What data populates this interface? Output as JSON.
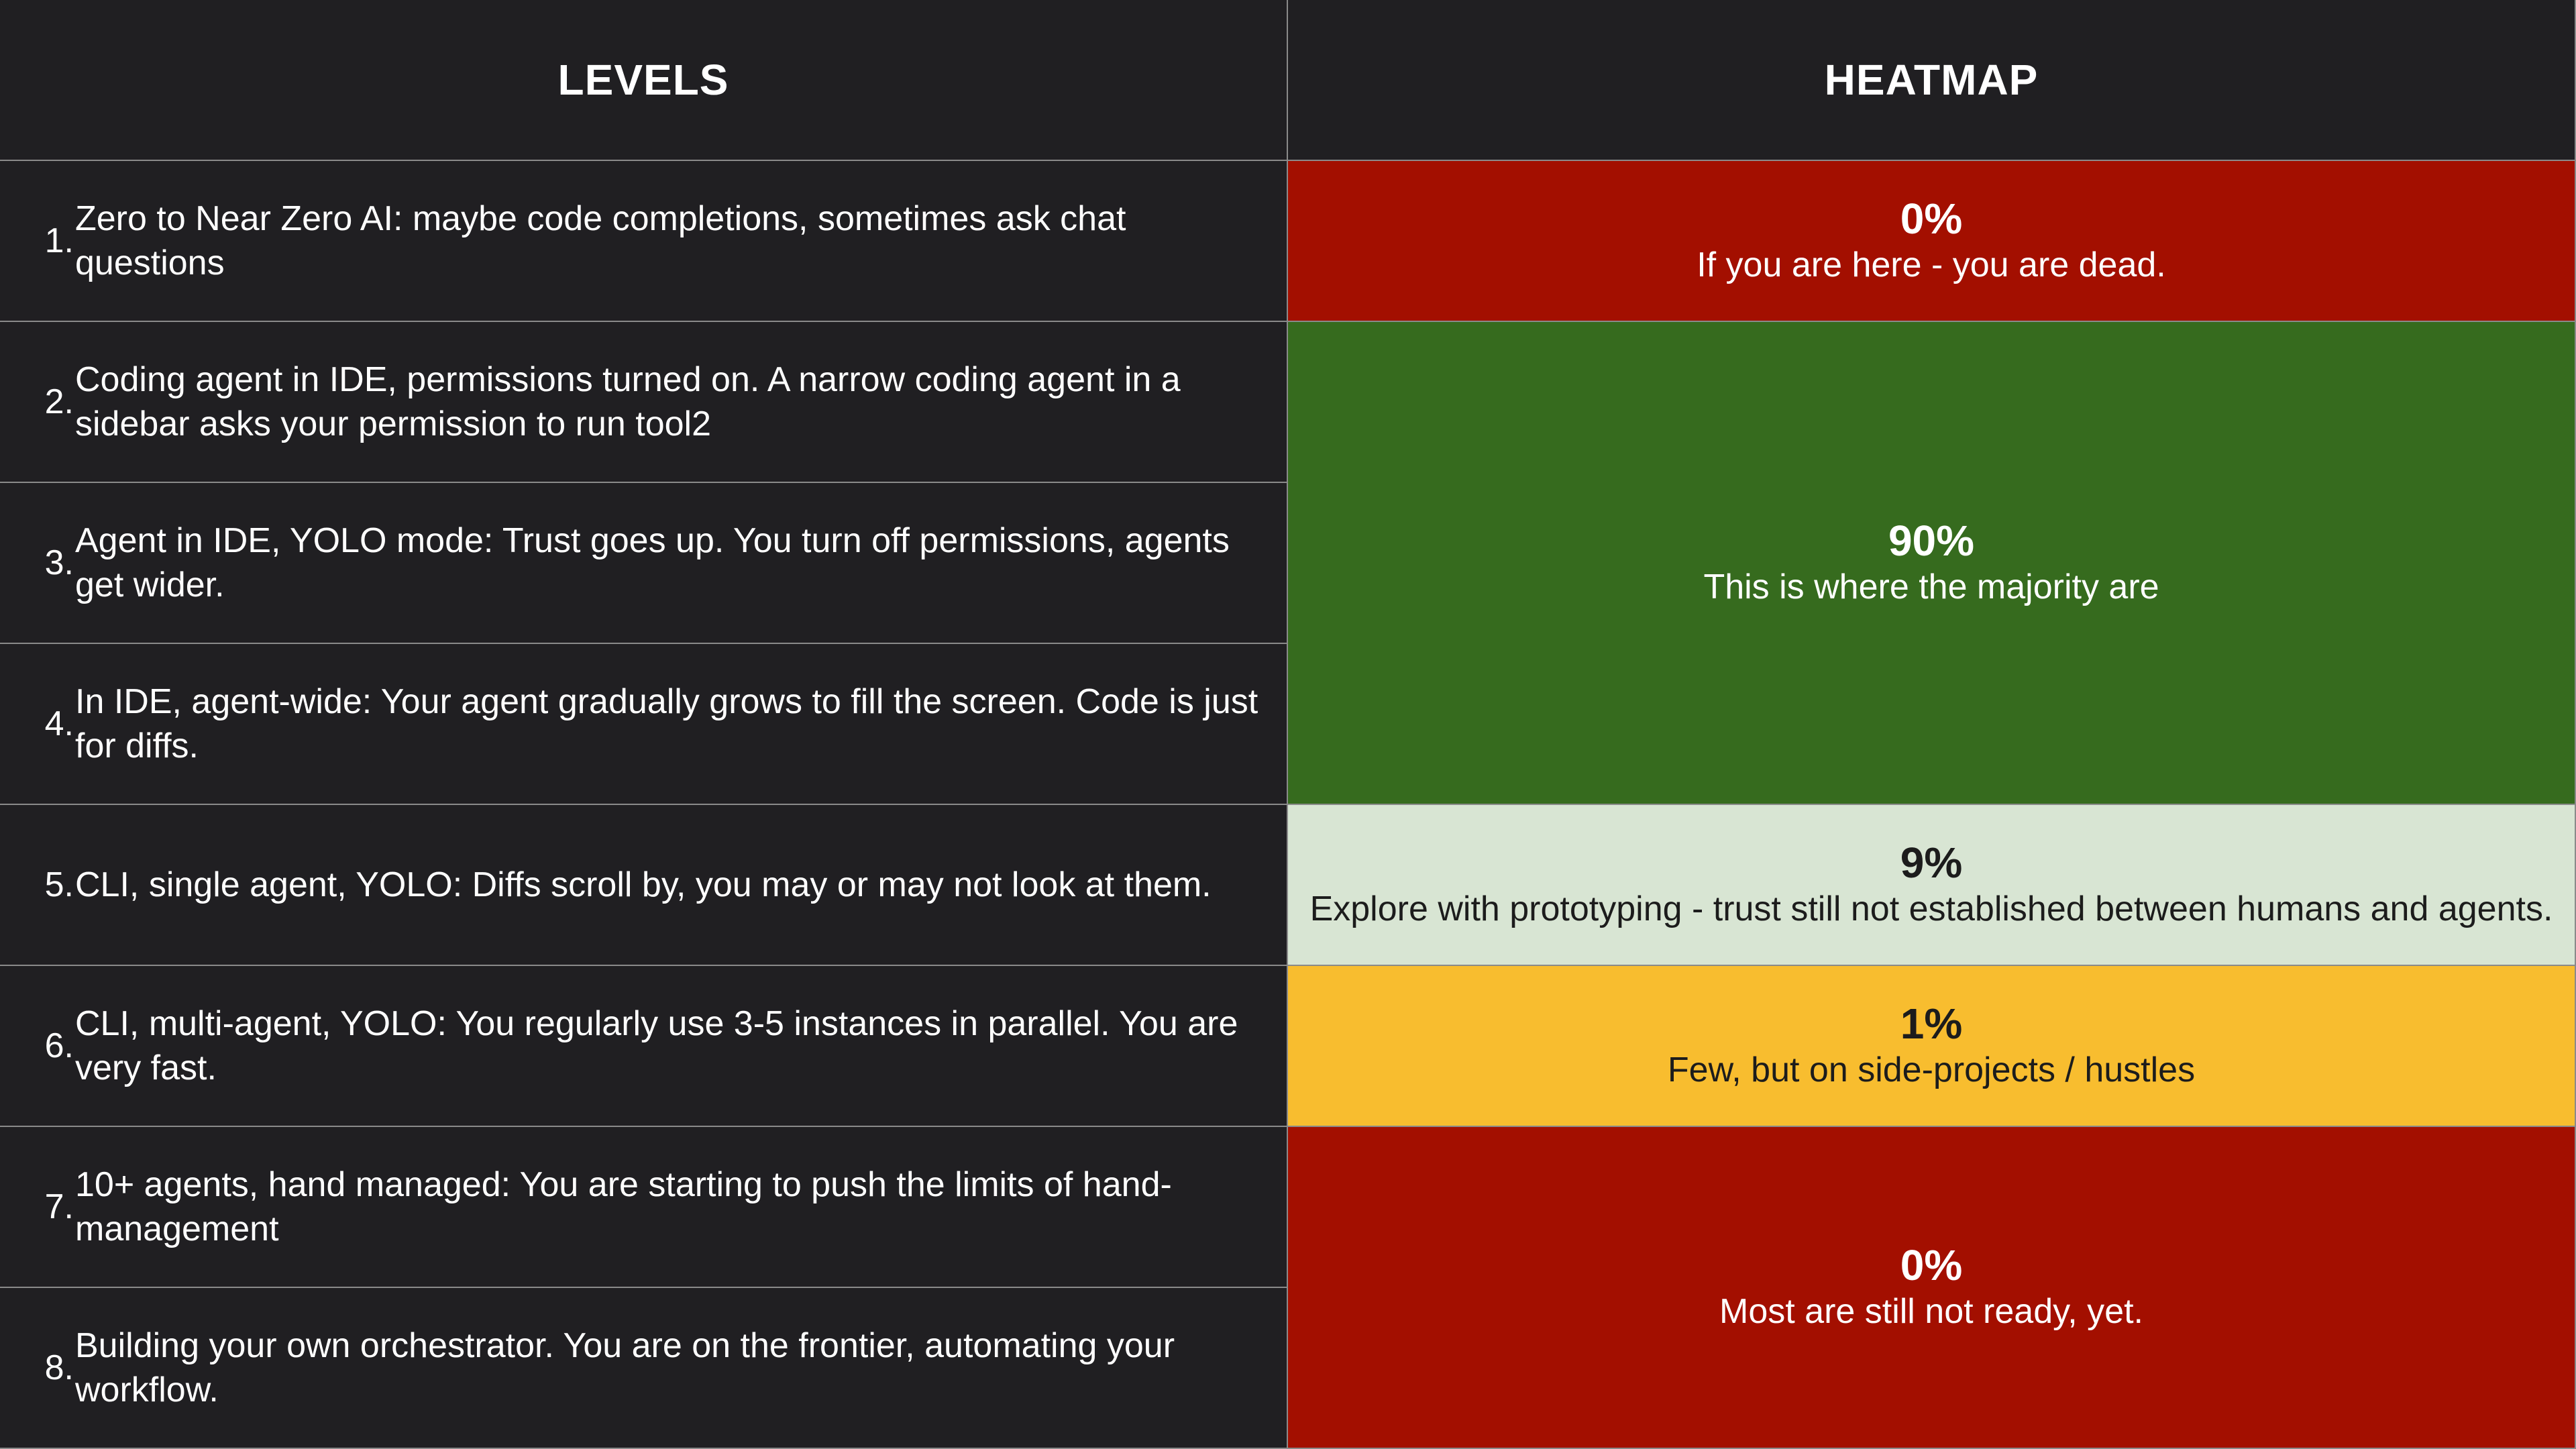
{
  "headers": {
    "levels": "LEVELS",
    "heatmap": "HEATMAP"
  },
  "levels": [
    {
      "num": "1.",
      "text": "Zero to Near Zero AI: maybe code completions, sometimes ask chat questions"
    },
    {
      "num": "2.",
      "text": "Coding agent in IDE, permissions turned on. A narrow coding agent in a sidebar asks your permission to run tool2"
    },
    {
      "num": "3.",
      "text": "Agent in IDE, YOLO mode: Trust goes up. You turn off permissions, agents get wider."
    },
    {
      "num": "4.",
      "text": "In IDE, agent-wide: Your agent gradually grows to fill the screen. Code is just for diffs."
    },
    {
      "num": "5.",
      "text": "CLI, single agent, YOLO: Diffs scroll by, you may or may not look at them."
    },
    {
      "num": "6.",
      "text": "CLI, multi-agent, YOLO: You regularly use 3-5 instances in parallel. You are very fast."
    },
    {
      "num": "7.",
      "text": "10+ agents, hand managed: You are starting to push the limits of hand-management"
    },
    {
      "num": "8.",
      "text": "Building your own orchestrator. You are on the frontier, automating your workflow."
    }
  ],
  "heatmap": [
    {
      "pct": "0%",
      "desc": "If you are here - you are dead.",
      "color": "#a30f00",
      "tone": "dark"
    },
    {
      "pct": "90%",
      "desc": "This is where the majority are",
      "color": "#366b1e",
      "tone": "dark"
    },
    {
      "pct": "9%",
      "desc": "Explore with prototyping - trust still not established between humans and agents.",
      "color": "#d8e5d3",
      "tone": "light"
    },
    {
      "pct": "1%",
      "desc": "Few, but on side-projects / hustles",
      "color": "#f8bd2f",
      "tone": "light"
    },
    {
      "pct": "0%",
      "desc": "Most are still not ready, yet.",
      "color": "#a30f00",
      "tone": "dark"
    }
  ]
}
